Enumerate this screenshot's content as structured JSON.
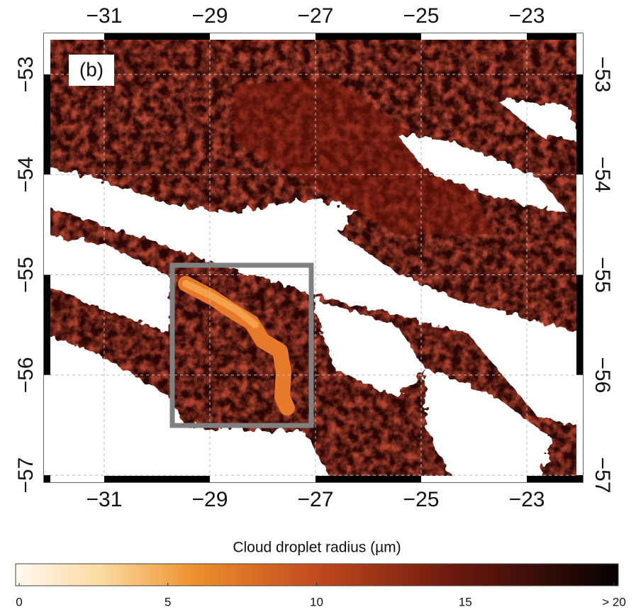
{
  "map": {
    "panel_label": "(b)",
    "xlim": [
      -32.14,
      -21.94
    ],
    "ylim": [
      -57.07,
      -52.59
    ],
    "xticks": [
      {
        "value": -31,
        "label": "−31"
      },
      {
        "value": -29,
        "label": "−29"
      },
      {
        "value": -27,
        "label": "−27"
      },
      {
        "value": -25,
        "label": "−25"
      },
      {
        "value": -23,
        "label": "−23"
      }
    ],
    "yticks": [
      {
        "value": -53,
        "label": "−53"
      },
      {
        "value": -54,
        "label": "−54"
      },
      {
        "value": -55,
        "label": "−55"
      },
      {
        "value": -56,
        "label": "−56"
      },
      {
        "value": -57,
        "label": "−57"
      }
    ],
    "grid": true
  },
  "colorbar": {
    "title": "Cloud droplet radius (µm)",
    "lim": [
      0,
      20
    ],
    "ticks": [
      0,
      5,
      10,
      15,
      {
        "value": 20,
        "label": "> 20"
      }
    ]
  }
}
